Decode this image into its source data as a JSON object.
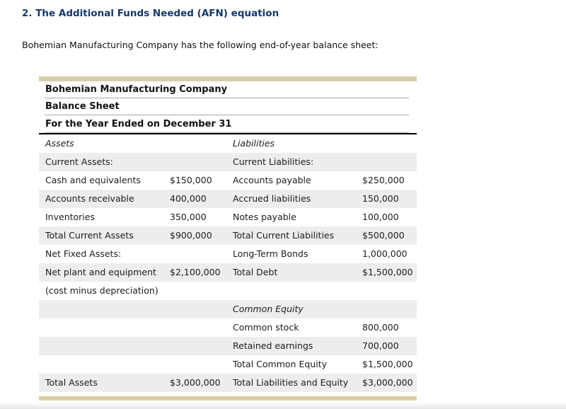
{
  "page": {
    "section_title": "2. The Additional Funds Needed (AFN) equation",
    "intro": "Bohemian Manufacturing Company has the following end-of-year balance sheet:"
  },
  "balance_sheet": {
    "header_lines": [
      "Bohemian Manufacturing Company",
      "Balance Sheet",
      "For the Year Ended on December 31"
    ],
    "rows": [
      {
        "a": "Assets",
        "a_italic": true,
        "av": "",
        "b": "Liabilities",
        "b_italic": true,
        "bv": "",
        "shaded": false
      },
      {
        "a": "Current Assets:",
        "av": "",
        "b": "Current Liabilities:",
        "bv": "",
        "shaded": true
      },
      {
        "a": "Cash and equivalents",
        "av": "$150,000",
        "b": "Accounts payable",
        "bv": "$250,000",
        "shaded": false
      },
      {
        "a": "Accounts receivable",
        "av": "400,000",
        "b": "Accrued liabilities",
        "bv": "150,000",
        "shaded": true
      },
      {
        "a": "Inventories",
        "av": "350,000",
        "b": "Notes payable",
        "bv": "100,000",
        "shaded": false
      },
      {
        "a": "Total Current Assets",
        "av": "$900,000",
        "b": "Total Current Liabilities",
        "bv": "$500,000",
        "shaded": true
      },
      {
        "a": "Net Fixed Assets:",
        "av": "",
        "b": "Long-Term Bonds",
        "bv": "1,000,000",
        "shaded": false
      },
      {
        "a": "Net plant and equipment",
        "av": "$2,100,000",
        "b": "Total Debt",
        "bv": "$1,500,000",
        "shaded": true
      },
      {
        "a": "(cost minus depreciation)",
        "av": "",
        "b": "",
        "bv": "",
        "shaded": false
      },
      {
        "a": "",
        "av": "",
        "b": "Common Equity",
        "b_italic": true,
        "bv": "",
        "shaded": true
      },
      {
        "a": "",
        "av": "",
        "b": "Common stock",
        "bv": "800,000",
        "shaded": false
      },
      {
        "a": "",
        "av": "",
        "b": "Retained earnings",
        "bv": "700,000",
        "shaded": true
      },
      {
        "a": "",
        "av": "",
        "b": "Total Common Equity",
        "bv": "$1,500,000",
        "shaded": false
      },
      {
        "a": "Total Assets",
        "av": "$3,000,000",
        "b": "Total Liabilities and Equity",
        "bv": "$3,000,000",
        "shaded": true
      }
    ]
  },
  "colors": {
    "accent_bar": "#d8cfa8",
    "row_shade": "#ededed",
    "title_text": "#15386d"
  }
}
